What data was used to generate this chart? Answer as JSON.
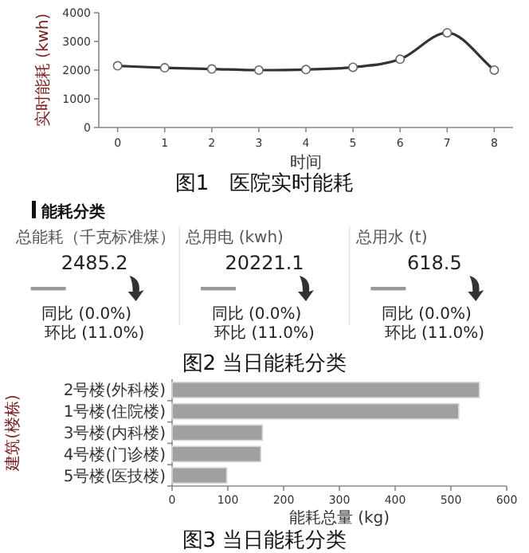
{
  "chart_data": [
    {
      "type": "line",
      "xlabel": "时间",
      "ylabel": "实时能耗 (kwh)",
      "x": [
        0,
        1,
        2,
        3,
        4,
        5,
        6,
        7,
        8
      ],
      "series": [
        {
          "color": "#333333",
          "values": [
            2150,
            2080,
            2040,
            2000,
            2020,
            2100,
            2380,
            3300,
            2000
          ]
        }
      ],
      "xlim": [
        -0.4,
        8.4
      ],
      "xticks": [
        0,
        1,
        2,
        3,
        4,
        5,
        6,
        7,
        8
      ],
      "ylim": [
        0,
        4000
      ],
      "yticks": [
        0,
        1000,
        2000,
        3000,
        4000
      ],
      "marker": "circle",
      "line_style": "solid",
      "grid": false,
      "annotations": [
        "图1　医院实时能耗"
      ]
    },
    {
      "type": "other",
      "title": "能耗分类",
      "annotations": [
        "总能耗（千克标准煤）",
        "2485.2",
        "同比 (0.0%)",
        "环比 (11.0%)",
        "总用电 (kwh)",
        "20221.1",
        "同比 (0.0%)",
        "环比 (11.0%)",
        "总用水 (t)",
        "618.5",
        "同比 (0.0%)",
        "环比 (11.0%)",
        "图2 当日能耗分类"
      ]
    },
    {
      "type": "bar",
      "orientation": "horizontal",
      "categories": [
        "2号楼(外科楼)",
        "1号楼(住院楼)",
        "3号楼(内科楼)",
        "4号楼(门诊楼)",
        "5号楼(医技楼)"
      ],
      "values": [
        551,
        514,
        162,
        159,
        98
      ],
      "color": "#a0a0a0",
      "xlim": [
        0,
        600
      ],
      "xticks": [
        0,
        100,
        200,
        300,
        400,
        500,
        600
      ],
      "xlabel": "能耗总量 (kg)",
      "ylabel": "建筑(楼栋)",
      "grid": false,
      "annotations": [
        "图3 当日能耗分类"
      ]
    }
  ]
}
